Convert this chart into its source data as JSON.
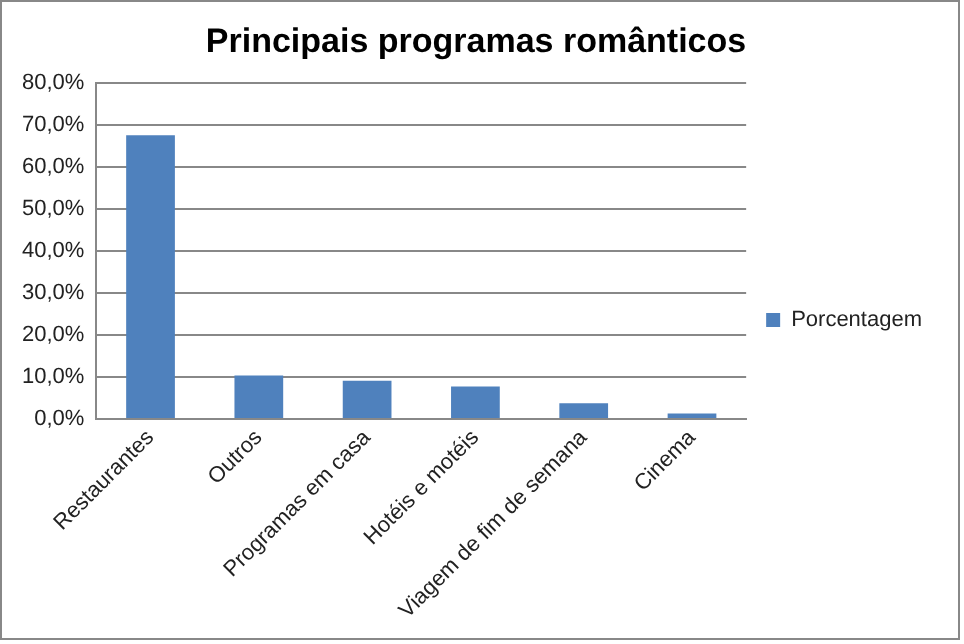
{
  "chart_data": {
    "type": "bar",
    "title": "Principais programas românticos",
    "categories": [
      "Restaurantes",
      "Outros",
      "Programas em casa",
      "Hotéis e motéis",
      "Viagem de fim de semana",
      "Cinema"
    ],
    "series": [
      {
        "name": "Porcentagem",
        "color": "#4f81bd",
        "values": [
          67.5,
          10.3,
          9.1,
          7.7,
          3.7,
          1.3
        ]
      }
    ],
    "ylim": [
      0,
      80
    ],
    "yticks": [
      {
        "value": 0,
        "label": "0,0%"
      },
      {
        "value": 10,
        "label": "10,0%"
      },
      {
        "value": 20,
        "label": "20,0%"
      },
      {
        "value": 30,
        "label": "30,0%"
      },
      {
        "value": 40,
        "label": "40,0%"
      },
      {
        "value": 50,
        "label": "50,0%"
      },
      {
        "value": 60,
        "label": "60,0%"
      },
      {
        "value": 70,
        "label": "70,0%"
      },
      {
        "value": 80,
        "label": "80,0%"
      }
    ],
    "grid": "y",
    "legend": "right"
  }
}
